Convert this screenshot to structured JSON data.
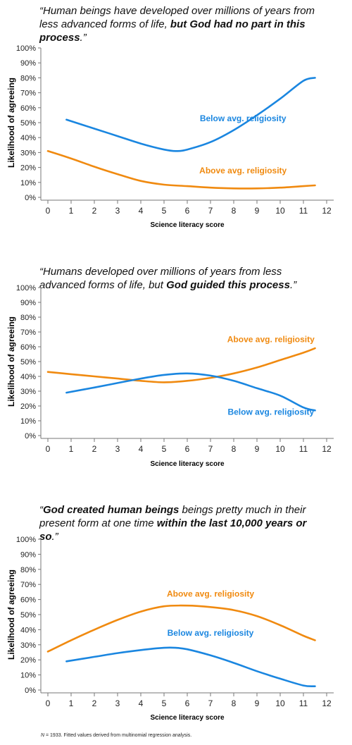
{
  "chart_data": [
    {
      "type": "line",
      "title_parts": [
        {
          "text": "“Human beings have developed over millions of years from less advanced forms of life, ",
          "bold": false
        },
        {
          "text": "but God had no part in this process",
          "bold": true
        },
        {
          "text": ".”",
          "bold": false
        }
      ],
      "xlabel": "Science literacy  score",
      "ylabel": "Likelihood of agreeing",
      "xlim": [
        0,
        12
      ],
      "ylim": [
        0,
        100
      ],
      "x_ticks": [
        "0",
        "1",
        "2",
        "3",
        "4",
        "5",
        "6",
        "7",
        "8",
        "9",
        "10",
        "11",
        "12"
      ],
      "y_ticks": [
        "0%",
        "10%",
        "20%",
        "30%",
        "40%",
        "50%",
        "60%",
        "70%",
        "80%",
        "90%",
        "100%"
      ],
      "series": [
        {
          "name": "Below avg. religiosity",
          "color": "#1a86e0",
          "x": [
            0.8,
            2,
            3,
            4,
            5,
            5.5,
            6,
            7,
            8,
            9,
            10,
            11,
            11.5
          ],
          "y": [
            52,
            46,
            41,
            36,
            32,
            31,
            32,
            37,
            45,
            55,
            66,
            78,
            80
          ]
        },
        {
          "name": "Above avg. religiosity",
          "color": "#f08a10",
          "x": [
            0,
            1,
            2,
            3,
            4,
            5,
            6,
            7,
            8,
            9,
            10,
            11,
            11.5
          ],
          "y": [
            31,
            26,
            20.5,
            15.5,
            11,
            8.5,
            7.5,
            6.5,
            6,
            6,
            6.5,
            7.5,
            8
          ]
        }
      ],
      "labels": [
        {
          "text": "Below avg. religiosity",
          "color": "#1a86e0",
          "x": 8.4,
          "y": 51
        },
        {
          "text": "Above avg. religiosity",
          "color": "#f08a10",
          "x": 8.4,
          "y": 16
        }
      ]
    },
    {
      "type": "line",
      "title_parts": [
        {
          "text": "“Humans developed over millions of years from less advanced forms of life, but ",
          "bold": false
        },
        {
          "text": "God guided this process",
          "bold": true
        },
        {
          "text": ".”",
          "bold": false
        }
      ],
      "xlabel": "Science literacy  score",
      "ylabel": "Likelihood of agreeing",
      "xlim": [
        0,
        12
      ],
      "ylim": [
        0,
        100
      ],
      "x_ticks": [
        "0",
        "1",
        "2",
        "3",
        "4",
        "5",
        "6",
        "7",
        "8",
        "9",
        "10",
        "11",
        "12"
      ],
      "y_ticks": [
        "0%",
        "10%",
        "20%",
        "30%",
        "40%",
        "50%",
        "60%",
        "70%",
        "80%",
        "90%",
        "100%"
      ],
      "series": [
        {
          "name": "Above avg. religiosity",
          "color": "#f08a10",
          "x": [
            0,
            1,
            2,
            3,
            4,
            5,
            6,
            7,
            8,
            9,
            10,
            11,
            11.5
          ],
          "y": [
            43,
            41.5,
            40,
            38.5,
            37,
            36,
            37,
            39,
            42,
            46,
            51,
            56,
            59
          ]
        },
        {
          "name": "Below avg. religiosity",
          "color": "#1a86e0",
          "x": [
            0.8,
            2,
            3,
            4,
            5,
            6,
            7,
            8,
            9,
            10,
            11,
            11.5
          ],
          "y": [
            29,
            32.5,
            35.5,
            38.5,
            41,
            42,
            40.5,
            37,
            32,
            27,
            19,
            17
          ]
        }
      ],
      "labels": [
        {
          "text": "Above avg. religiosity",
          "color": "#f08a10",
          "x": 9.6,
          "y": 63
        },
        {
          "text": "Below avg. religiosity",
          "color": "#1a86e0",
          "x": 9.6,
          "y": 14
        }
      ]
    },
    {
      "type": "line",
      "title_parts": [
        {
          "text": "“",
          "bold": false
        },
        {
          "text": "God created human beings",
          "bold": true
        },
        {
          "text": " beings pretty much in their present form at one time ",
          "bold": false
        },
        {
          "text": "within the last 10,000 years or so",
          "bold": true
        },
        {
          "text": ".”",
          "bold": false
        }
      ],
      "xlabel": "Science literacy  score",
      "ylabel": "Likelihood of agreeing",
      "xlim": [
        0,
        12
      ],
      "ylim": [
        0,
        100
      ],
      "x_ticks": [
        "0",
        "1",
        "2",
        "3",
        "4",
        "5",
        "6",
        "7",
        "8",
        "9",
        "10",
        "11",
        "12"
      ],
      "y_ticks": [
        "0%",
        "10%",
        "20%",
        "30%",
        "40%",
        "50%",
        "60%",
        "70%",
        "80%",
        "90%",
        "100%"
      ],
      "series": [
        {
          "name": "Above avg. religiosity",
          "color": "#f08a10",
          "x": [
            0,
            1,
            2,
            3,
            4,
            5,
            6,
            7,
            8,
            9,
            10,
            11,
            11.5
          ],
          "y": [
            25.5,
            33,
            40,
            46.5,
            52,
            55.5,
            56,
            55,
            53,
            49,
            43,
            36,
            33
          ]
        },
        {
          "name": "Below avg. religiosity",
          "color": "#1a86e0",
          "x": [
            0.8,
            2,
            3,
            4,
            5,
            5.5,
            6,
            7,
            8,
            9,
            10,
            11,
            11.5
          ],
          "y": [
            19,
            22,
            24.5,
            26.5,
            28,
            28,
            27,
            23,
            18,
            12.5,
            7.5,
            3,
            2.5
          ]
        }
      ],
      "labels": [
        {
          "text": "Above avg. religiosity",
          "color": "#f08a10",
          "x": 7,
          "y": 62
        },
        {
          "text": "Below avg. religiosity",
          "color": "#1a86e0",
          "x": 7,
          "y": 36
        }
      ]
    }
  ],
  "footnote": {
    "n_label": "N",
    "text": " = 1933.  Fitted values derived from multinomial  regression analysis."
  }
}
